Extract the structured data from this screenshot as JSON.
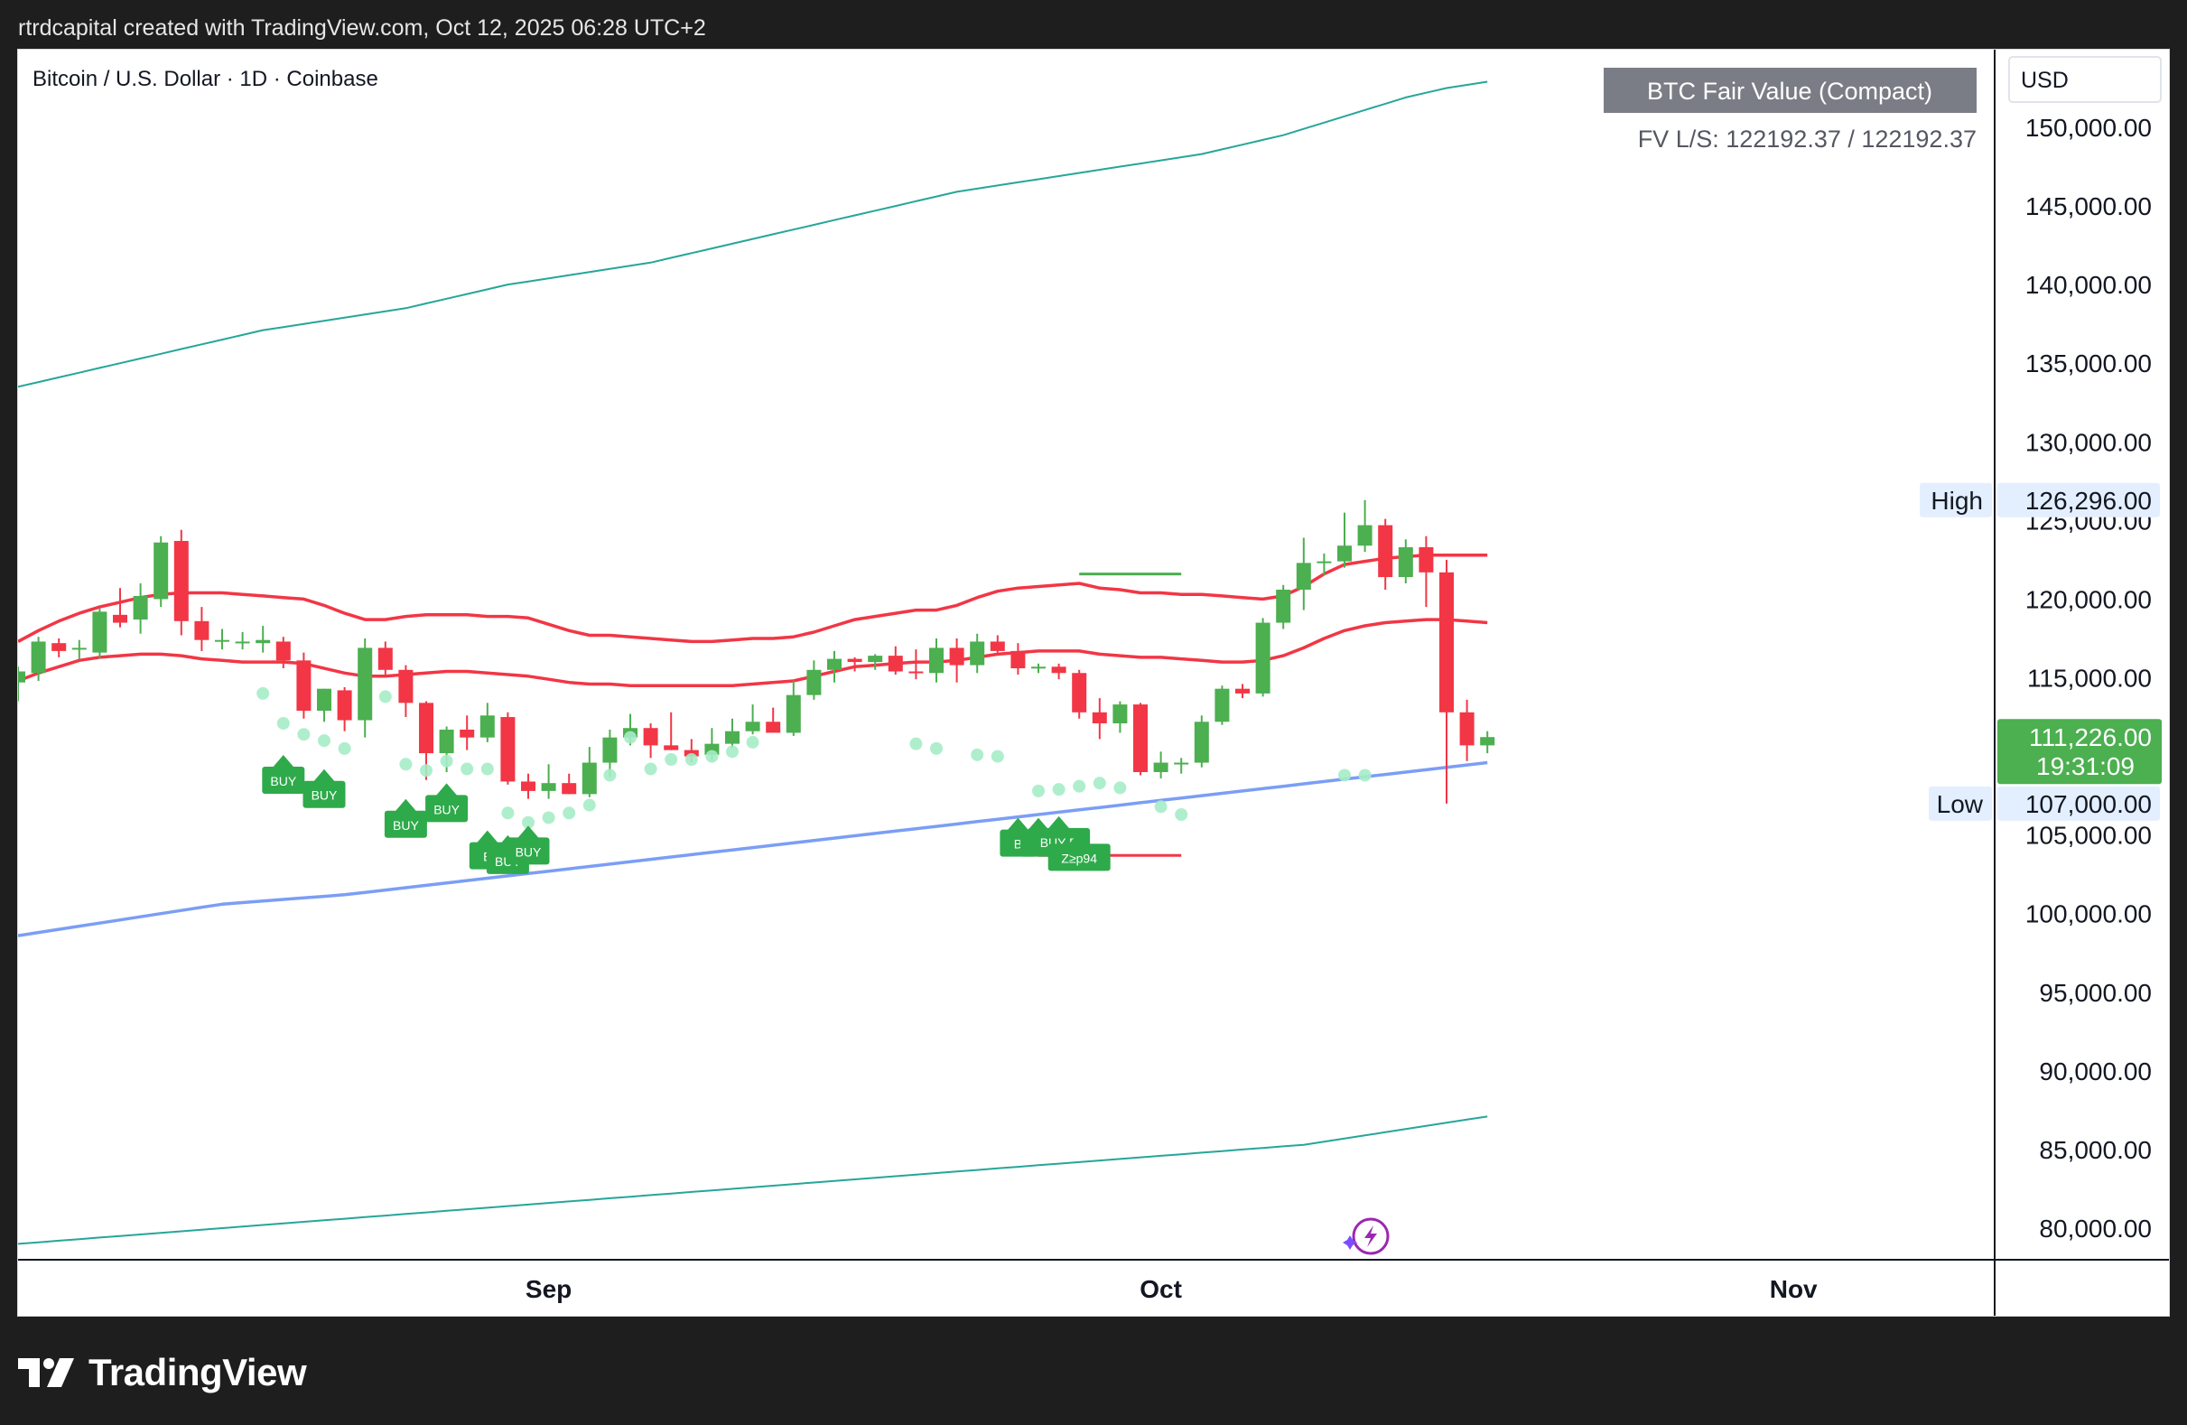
{
  "header": {
    "text": "rtrdcapital created with TradingView.com, Oct 12, 2025 06:28 UTC+2"
  },
  "brand": {
    "name": "TradingView"
  },
  "colors": {
    "up": "#4caf50",
    "down": "#f23645",
    "band": "#26a69a",
    "mid": "#f23645",
    "blue": "#7b9ef5",
    "dot": "#a6ecc6",
    "buy": "#2eaa4a",
    "badge": "#7a7d85",
    "price_tag": "#4caf50"
  },
  "chart_data": {
    "type": "candlestick",
    "title": "Bitcoin / U.S. Dollar · 1D · Coinbase",
    "currency": "USD",
    "y_ticks": [
      "150,000.00",
      "145,000.00",
      "140,000.00",
      "135,000.00",
      "130,000.00",
      "125,000.00",
      "120,000.00",
      "115,000.00",
      "110,000.00",
      "105,000.00",
      "100,000.00",
      "95,000.00",
      "90,000.00",
      "85,000.00",
      "80,000.00"
    ],
    "ylim": [
      79000,
      152000
    ],
    "x_labels": [
      {
        "label": "Sep",
        "idx": 26
      },
      {
        "label": "Oct",
        "idx": 56
      },
      {
        "label": "Nov",
        "idx": 87
      }
    ],
    "ohlc": [
      [
        114700,
        115700,
        113500,
        115400
      ],
      [
        115300,
        117600,
        114800,
        117300
      ],
      [
        117200,
        117500,
        116300,
        116700
      ],
      [
        116800,
        117400,
        116200,
        116900
      ],
      [
        116600,
        119400,
        116200,
        119200
      ],
      [
        119000,
        120700,
        118200,
        118500
      ],
      [
        118700,
        121000,
        117800,
        120200
      ],
      [
        120000,
        124000,
        119500,
        123600
      ],
      [
        123700,
        124400,
        117700,
        118600
      ],
      [
        118600,
        119500,
        116700,
        117400
      ],
      [
        117300,
        118100,
        116800,
        117400
      ],
      [
        117300,
        117900,
        116800,
        117300
      ],
      [
        117200,
        118300,
        116600,
        117400
      ],
      [
        117300,
        117600,
        115600,
        116100
      ],
      [
        116100,
        116600,
        112400,
        112900
      ],
      [
        112900,
        114300,
        112200,
        114300
      ],
      [
        114200,
        114400,
        111600,
        112300
      ],
      [
        112300,
        117500,
        111200,
        116900
      ],
      [
        116900,
        117300,
        115000,
        115500
      ],
      [
        115500,
        115800,
        112500,
        113400
      ],
      [
        113400,
        113500,
        108500,
        110200
      ],
      [
        110200,
        111900,
        109000,
        111700
      ],
      [
        111700,
        112600,
        110400,
        111200
      ],
      [
        111200,
        113400,
        110900,
        112600
      ],
      [
        112500,
        112800,
        108200,
        108400
      ],
      [
        108400,
        108900,
        107300,
        107800
      ],
      [
        107800,
        109500,
        107300,
        108300
      ],
      [
        108300,
        108900,
        107600,
        107600
      ],
      [
        107600,
        110600,
        107400,
        109600
      ],
      [
        109600,
        111700,
        108700,
        111200
      ],
      [
        111200,
        112700,
        110700,
        111800
      ],
      [
        111800,
        112100,
        109900,
        110700
      ],
      [
        110700,
        112800,
        110400,
        110400
      ],
      [
        110400,
        111100,
        109600,
        110000
      ],
      [
        110100,
        111800,
        109700,
        110800
      ],
      [
        110800,
        112400,
        110500,
        111600
      ],
      [
        111600,
        113300,
        111400,
        112200
      ],
      [
        112200,
        113100,
        111700,
        111500
      ],
      [
        111500,
        114800,
        111300,
        113900
      ],
      [
        113900,
        116100,
        113600,
        115500
      ],
      [
        115500,
        116700,
        114700,
        116200
      ],
      [
        116200,
        116300,
        115400,
        116000
      ],
      [
        116000,
        116500,
        115500,
        116400
      ],
      [
        116400,
        117000,
        115200,
        115400
      ],
      [
        115400,
        116800,
        114900,
        115300
      ],
      [
        115300,
        117500,
        114700,
        116900
      ],
      [
        116900,
        117500,
        114700,
        115800
      ],
      [
        115800,
        117800,
        115300,
        117300
      ],
      [
        117300,
        117700,
        116600,
        116700
      ],
      [
        116700,
        117200,
        115200,
        115600
      ],
      [
        115600,
        115900,
        115300,
        115700
      ],
      [
        115700,
        115900,
        114900,
        115300
      ],
      [
        115300,
        115500,
        112400,
        112800
      ],
      [
        112800,
        113700,
        111100,
        112100
      ],
      [
        112100,
        113500,
        111500,
        113300
      ],
      [
        113300,
        113400,
        108800,
        109000
      ],
      [
        109000,
        110300,
        108600,
        109600
      ],
      [
        109600,
        109900,
        108900,
        109600
      ],
      [
        109600,
        112600,
        109300,
        112200
      ],
      [
        112200,
        114500,
        112000,
        114300
      ],
      [
        114300,
        114600,
        113700,
        114000
      ],
      [
        114000,
        118800,
        113800,
        118500
      ],
      [
        118500,
        120900,
        118100,
        120600
      ],
      [
        120600,
        123900,
        119300,
        122300
      ],
      [
        122300,
        122900,
        121500,
        122400
      ],
      [
        122400,
        125500,
        122000,
        123400
      ],
      [
        123400,
        126296,
        123000,
        124700
      ],
      [
        124700,
        125100,
        120600,
        121400
      ],
      [
        121400,
        123800,
        121000,
        123300
      ],
      [
        123300,
        124000,
        119500,
        121700
      ],
      [
        121700,
        122500,
        107000,
        112800
      ],
      [
        112800,
        113600,
        109700,
        110700
      ],
      [
        110700,
        111600,
        110200,
        111226
      ]
    ],
    "upper_band": [
      133500,
      133800,
      134100,
      134400,
      134700,
      135000,
      135300,
      135600,
      135900,
      136200,
      136500,
      136800,
      137100,
      137300,
      137500,
      137700,
      137900,
      138100,
      138300,
      138500,
      138800,
      139100,
      139400,
      139700,
      140000,
      140200,
      140400,
      140600,
      140800,
      141000,
      141200,
      141400,
      141700,
      142000,
      142300,
      142600,
      142900,
      143200,
      143500,
      143800,
      144100,
      144400,
      144700,
      145000,
      145300,
      145600,
      145900,
      146100,
      146300,
      146500,
      146700,
      146900,
      147100,
      147300,
      147500,
      147700,
      147900,
      148100,
      148300,
      148600,
      148900,
      149200,
      149500,
      149900,
      150300,
      150700,
      151100,
      151500,
      151900,
      152200,
      152500,
      152700,
      152900
    ],
    "lower_band": [
      79000,
      79100,
      79200,
      79300,
      79400,
      79500,
      79600,
      79700,
      79800,
      79900,
      80000,
      80100,
      80200,
      80300,
      80400,
      80500,
      80600,
      80700,
      80800,
      80900,
      81000,
      81100,
      81200,
      81300,
      81400,
      81500,
      81600,
      81700,
      81800,
      81900,
      82000,
      82100,
      82200,
      82300,
      82400,
      82500,
      82600,
      82700,
      82800,
      82900,
      83000,
      83100,
      83200,
      83300,
      83400,
      83500,
      83600,
      83700,
      83800,
      83900,
      84000,
      84100,
      84200,
      84300,
      84400,
      84500,
      84600,
      84700,
      84800,
      84900,
      85000,
      85100,
      85200,
      85300,
      85500,
      85700,
      85900,
      86100,
      86300,
      86500,
      86700,
      86900,
      87100
    ],
    "blue_line": [
      98600,
      98800,
      99000,
      99200,
      99400,
      99600,
      99800,
      100000,
      100200,
      100400,
      100600,
      100700,
      100800,
      100900,
      101000,
      101100,
      101200,
      101350,
      101500,
      101650,
      101800,
      101950,
      102100,
      102250,
      102400,
      102550,
      102700,
      102850,
      103000,
      103150,
      103300,
      103450,
      103600,
      103750,
      103900,
      104050,
      104200,
      104350,
      104500,
      104650,
      104800,
      104950,
      105100,
      105250,
      105400,
      105550,
      105700,
      105850,
      106000,
      106150,
      106300,
      106450,
      106600,
      106750,
      106900,
      107050,
      107200,
      107350,
      107500,
      107650,
      107800,
      107950,
      108100,
      108250,
      108400,
      108550,
      108700,
      108850,
      109000,
      109150,
      109300,
      109450,
      109600
    ],
    "red_upper": [
      117300,
      118000,
      118600,
      119100,
      119500,
      119800,
      120100,
      120300,
      120400,
      120400,
      120400,
      120300,
      120200,
      120100,
      120000,
      119600,
      119100,
      118700,
      118700,
      118900,
      119000,
      119000,
      119000,
      118900,
      118900,
      118800,
      118400,
      118000,
      117700,
      117700,
      117600,
      117500,
      117400,
      117300,
      117300,
      117400,
      117500,
      117500,
      117600,
      117900,
      118300,
      118700,
      118900,
      119100,
      119300,
      119300,
      119600,
      120100,
      120500,
      120700,
      120800,
      120900,
      121000,
      120700,
      120600,
      120400,
      120400,
      120300,
      120300,
      120200,
      120100,
      120000,
      120200,
      120800,
      121600,
      122200,
      122400,
      122600,
      122700,
      122800,
      122800,
      122800,
      122800
    ],
    "red_lower": [
      114800,
      115300,
      115700,
      116100,
      116300,
      116400,
      116500,
      116500,
      116400,
      116200,
      116100,
      116000,
      116000,
      116000,
      115900,
      115600,
      115300,
      115100,
      115100,
      115200,
      115300,
      115400,
      115400,
      115300,
      115200,
      115100,
      114900,
      114700,
      114600,
      114600,
      114500,
      114500,
      114500,
      114500,
      114500,
      114500,
      114600,
      114700,
      114800,
      115100,
      115400,
      115700,
      115800,
      115900,
      116000,
      116000,
      116100,
      116300,
      116500,
      116600,
      116700,
      116700,
      116700,
      116500,
      116400,
      116300,
      116300,
      116200,
      116100,
      116000,
      116000,
      116100,
      116400,
      116900,
      117500,
      118000,
      118300,
      118500,
      118600,
      118700,
      118700,
      118600,
      118500
    ],
    "red_segment": {
      "from": 50,
      "to": 57,
      "value": 103700
    },
    "green_segment": {
      "from": 52,
      "to": 57,
      "value": 121600
    },
    "dots": [
      [
        12,
        114000
      ],
      [
        13,
        112100
      ],
      [
        14,
        111400
      ],
      [
        15,
        111000
      ],
      [
        16,
        110500
      ],
      [
        18,
        113800
      ],
      [
        19,
        109500
      ],
      [
        20,
        109100
      ],
      [
        21,
        109700
      ],
      [
        22,
        109200
      ],
      [
        23,
        109200
      ],
      [
        24,
        106400
      ],
      [
        25,
        105800
      ],
      [
        26,
        106100
      ],
      [
        27,
        106400
      ],
      [
        28,
        106900
      ],
      [
        29,
        108800
      ],
      [
        30,
        111200
      ],
      [
        31,
        109200
      ],
      [
        32,
        109800
      ],
      [
        33,
        109800
      ],
      [
        34,
        110000
      ],
      [
        35,
        110300
      ],
      [
        36,
        110900
      ],
      [
        44,
        110800
      ],
      [
        45,
        110500
      ],
      [
        47,
        110100
      ],
      [
        48,
        110000
      ],
      [
        50,
        107800
      ],
      [
        51,
        107900
      ],
      [
        52,
        108100
      ],
      [
        53,
        108300
      ],
      [
        54,
        108000
      ],
      [
        56,
        106800
      ],
      [
        57,
        106300
      ],
      [
        65,
        108800
      ],
      [
        66,
        108800
      ]
    ],
    "buy_signals": [
      {
        "idx": 13,
        "value": 109400,
        "label": "BUY"
      },
      {
        "idx": 15,
        "value": 108500,
        "label": "BUY"
      },
      {
        "idx": 19,
        "value": 106600,
        "label": "BUY"
      },
      {
        "idx": 21,
        "value": 107600,
        "label": "BUY"
      },
      {
        "idx": 23,
        "value": 104600,
        "label": "B"
      },
      {
        "idx": 24,
        "value": 104300,
        "label": "BUY"
      },
      {
        "idx": 25,
        "value": 104900,
        "label": "BUY"
      },
      {
        "idx": 49,
        "value": 105400,
        "label": "B"
      },
      {
        "idx": 50,
        "value": 105400,
        "label": "B"
      },
      {
        "idx": 51,
        "value": 105500,
        "label": "BUY B"
      },
      {
        "idx": 52,
        "value": 104500,
        "label": "Z≥p94"
      }
    ],
    "indicator_badge": "BTC Fair Value (Compact)",
    "indicator_values": "FV L/S: 122192.37 / 122192.37",
    "high": {
      "label": "High",
      "value": "126,296.00"
    },
    "low": {
      "label": "Low",
      "value": "107,000.00"
    },
    "last": {
      "value": "111,226.00",
      "countdown": "19:31:09",
      "price": 111226
    }
  }
}
